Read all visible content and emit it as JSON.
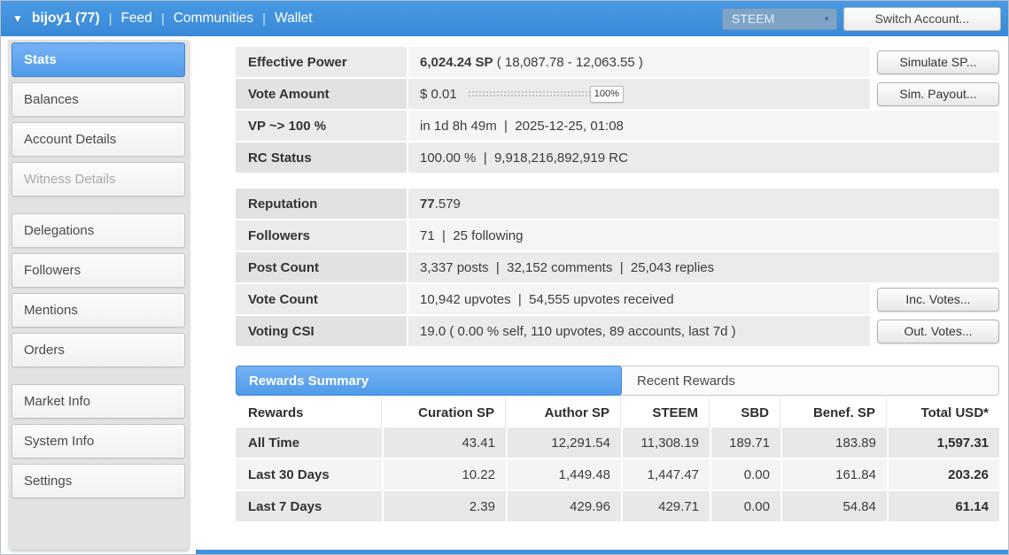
{
  "topbar": {
    "dropdown_icon": "▼",
    "account": "bijoy1 (77)",
    "separator": "|",
    "nav": [
      "Feed",
      "Communities",
      "Wallet"
    ],
    "token": "STEEM",
    "token_caret": "▼",
    "switch_account": "Switch Account..."
  },
  "sidebar": {
    "groups": [
      {
        "items": [
          {
            "label": "Stats",
            "state": "active"
          },
          {
            "label": "Balances",
            "state": "normal"
          },
          {
            "label": "Account Details",
            "state": "normal"
          },
          {
            "label": "Witness Details",
            "state": "disabled"
          }
        ]
      },
      {
        "items": [
          {
            "label": "Delegations",
            "state": "normal"
          },
          {
            "label": "Followers",
            "state": "normal"
          },
          {
            "label": "Mentions",
            "state": "normal"
          },
          {
            "label": "Orders",
            "state": "normal"
          }
        ]
      },
      {
        "items": [
          {
            "label": "Market Info",
            "state": "normal"
          },
          {
            "label": "System Info",
            "state": "normal"
          },
          {
            "label": "Settings",
            "state": "normal"
          }
        ]
      }
    ]
  },
  "stats": {
    "effective_power": {
      "label": "Effective Power",
      "value_bold": "6,024.24 SP",
      "value_rest": " ( 18,087.78 - 12,063.55 )",
      "button": "Simulate SP..."
    },
    "vote_amount": {
      "label": "Vote Amount",
      "value": "$ 0.01",
      "slider_value": "100%",
      "button": "Sim. Payout..."
    },
    "vp_recharge": {
      "label": "VP ~> 100 %",
      "value": "in 1d 8h 49m  |  2025-12-25, 01:08"
    },
    "rc_status": {
      "label": "RC Status",
      "value": "100.00 %  |  9,918,216,892,919 RC"
    },
    "reputation": {
      "label": "Reputation",
      "value_bold": "77",
      "value_rest": ".579"
    },
    "followers": {
      "label": "Followers",
      "value": "71  |  25 following"
    },
    "post_count": {
      "label": "Post Count",
      "value": "3,337 posts  |  32,152 comments  |  25,043 replies"
    },
    "vote_count": {
      "label": "Vote Count",
      "value": "10,942 upvotes  |  54,555 upvotes received",
      "button": "Inc. Votes..."
    },
    "voting_csi": {
      "label": "Voting CSI",
      "value": "19.0 ( 0.00 % self, 110 upvotes, 89 accounts, last 7d )",
      "button": "Out. Votes..."
    }
  },
  "rewards": {
    "tabs": [
      {
        "label": "Rewards Summary",
        "active": true
      },
      {
        "label": "Recent Rewards",
        "active": false
      }
    ],
    "columns": [
      "Rewards",
      "Curation SP",
      "Author SP",
      "STEEM",
      "SBD",
      "Benef. SP",
      "Total USD*"
    ],
    "rows": [
      {
        "label": "All Time",
        "values": [
          "43.41",
          "12,291.54",
          "11,308.19",
          "189.71",
          "183.89",
          "1,597.31"
        ]
      },
      {
        "label": "Last 30 Days",
        "values": [
          "10.22",
          "1,449.48",
          "1,447.47",
          "0.00",
          "161.84",
          "203.26"
        ]
      },
      {
        "label": "Last 7 Days",
        "values": [
          "2.39",
          "429.96",
          "429.71",
          "0.00",
          "54.84",
          "61.14"
        ]
      }
    ]
  }
}
